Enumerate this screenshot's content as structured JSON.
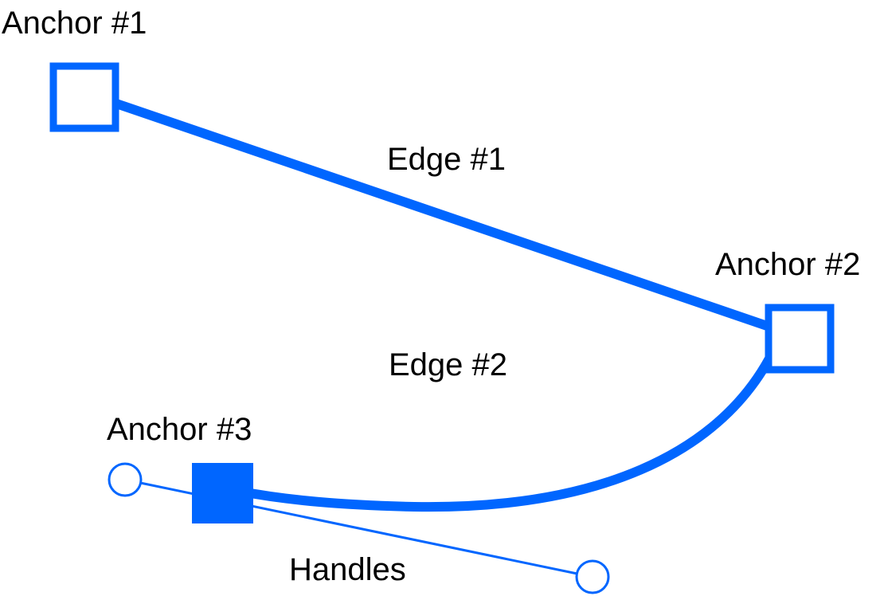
{
  "diagram": {
    "labels": {
      "anchor1": "Anchor #1",
      "anchor2": "Anchor #2",
      "anchor3": "Anchor #3",
      "edge1": "Edge #1",
      "edge2": "Edge #2",
      "handles": "Handles"
    },
    "colors": {
      "accent": "#0066ff",
      "background": "#ffffff",
      "text": "#000000"
    }
  }
}
